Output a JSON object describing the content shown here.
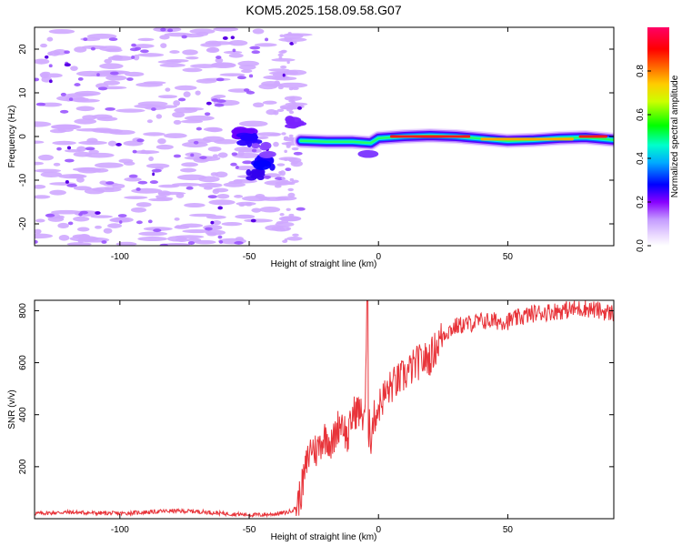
{
  "title": "KOM5.2025.158.09.58.G07",
  "chart_data": [
    {
      "type": "heatmap",
      "xlabel": "Height of straight line (km)",
      "ylabel": "Frequency (Hz)",
      "xlim": [
        -133,
        91
      ],
      "ylim": [
        -25,
        25
      ],
      "x_ticks": [
        -100,
        -50,
        0,
        50
      ],
      "y_ticks": [
        -20,
        -10,
        0,
        10,
        20
      ],
      "colorbar": {
        "label": "Normalized spectral amplitude",
        "range": [
          0,
          1
        ],
        "ticks": [
          0.0,
          0.2,
          0.4,
          0.6,
          0.8
        ],
        "tick_labels": [
          "0.0",
          "0.2",
          "0.4",
          "0.6",
          "0.8"
        ],
        "colormap": [
          "#ffffff",
          "#d8b3ff",
          "#8800ff",
          "#0000ff",
          "#00ccff",
          "#00ff44",
          "#ffff00",
          "#ff8800",
          "#ff0000",
          "#ff0066"
        ]
      },
      "ridge": [
        {
          "x": -30,
          "y": -1.0
        },
        {
          "x": -20,
          "y": -1.2
        },
        {
          "x": -10,
          "y": -1.2
        },
        {
          "x": -3,
          "y": -1.5
        },
        {
          "x": 0,
          "y": -0.4
        },
        {
          "x": 10,
          "y": 0.0
        },
        {
          "x": 20,
          "y": 0.2
        },
        {
          "x": 30,
          "y": 0.0
        },
        {
          "x": 40,
          "y": -0.5
        },
        {
          "x": 50,
          "y": -1.0
        },
        {
          "x": 60,
          "y": -0.8
        },
        {
          "x": 70,
          "y": -0.4
        },
        {
          "x": 80,
          "y": -0.2
        },
        {
          "x": 91,
          "y": -0.8
        }
      ],
      "hot_segments": [
        {
          "x_start": 5,
          "x_end": 35,
          "y": 0.0,
          "level": 0.95
        },
        {
          "x_start": 40,
          "x_end": 75,
          "y": -0.6,
          "level": 0.75
        },
        {
          "x_start": 78,
          "x_end": 88,
          "y": 0.0,
          "level": 0.95
        }
      ]
    },
    {
      "type": "line",
      "xlabel": "Height of straight line (km)",
      "ylabel": "SNR (v/v)",
      "xlim": [
        -133,
        91
      ],
      "ylim": [
        0,
        840
      ],
      "x_ticks": [
        -100,
        -50,
        0,
        50
      ],
      "y_ticks": [
        200,
        400,
        600,
        800
      ],
      "series": [
        {
          "color": "#e8343a",
          "x": [
            -133,
            -120,
            -110,
            -100,
            -90,
            -80,
            -70,
            -60,
            -50,
            -45,
            -40,
            -35,
            -32,
            -30,
            -28,
            -26,
            -24,
            -22,
            -20,
            -18,
            -16,
            -14,
            -12,
            -10,
            -8,
            -6,
            -5,
            -4.5,
            -4,
            -3.5,
            -3,
            -2,
            0,
            2,
            5,
            10,
            15,
            20,
            25,
            30,
            40,
            50,
            60,
            70,
            80,
            91
          ],
          "y": [
            20,
            25,
            22,
            20,
            25,
            30,
            28,
            20,
            15,
            15,
            18,
            25,
            40,
            100,
            200,
            280,
            260,
            300,
            320,
            280,
            350,
            380,
            300,
            400,
            420,
            390,
            450,
            820,
            200,
            420,
            300,
            380,
            430,
            470,
            510,
            550,
            600,
            620,
            710,
            740,
            760,
            760,
            790,
            800,
            810,
            790
          ]
        }
      ]
    }
  ]
}
